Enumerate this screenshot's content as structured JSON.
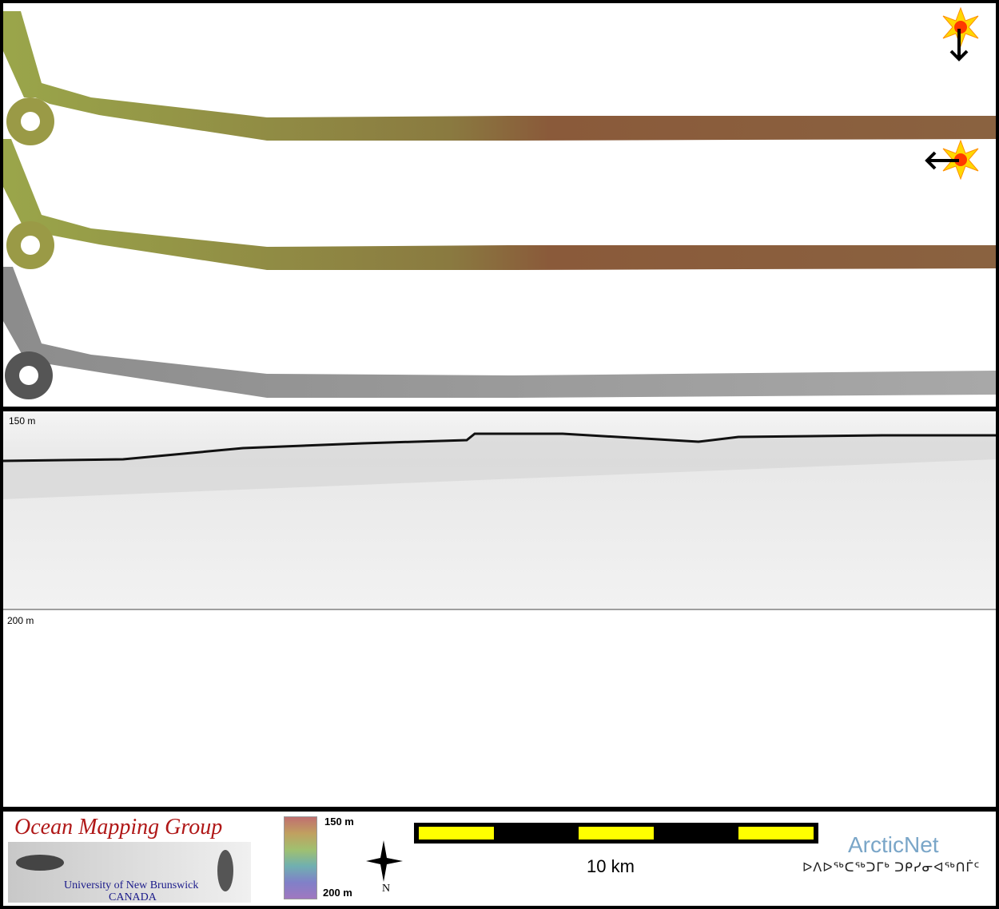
{
  "profile": {
    "top_depth": "150 m",
    "bottom_depth": "200 m"
  },
  "footer": {
    "logo_title": "Ocean Mapping Group",
    "logo_university": "University of New Brunswick",
    "logo_country": "CANADA",
    "colorbar_top": "150 m",
    "colorbar_bottom": "200 m",
    "north_label": "N",
    "scale_label": "10 km",
    "arcticnet_name": "ArcticNet",
    "arcticnet_syllabics": "ᐅᐱᐅᖅᑕᖅᑐᒥᒃ ᑐᑭᓯᓂᐊᖅᑎᒦᑦ"
  },
  "colors": {
    "border": "#000000",
    "scale_yellow": "#ffff00",
    "omg_red": "#b01818",
    "arcticnet_blue": "#7aa6c8"
  },
  "icons": [
    "sun-icon",
    "arrow-down-icon",
    "arrow-left-icon",
    "north-arrow-icon"
  ]
}
